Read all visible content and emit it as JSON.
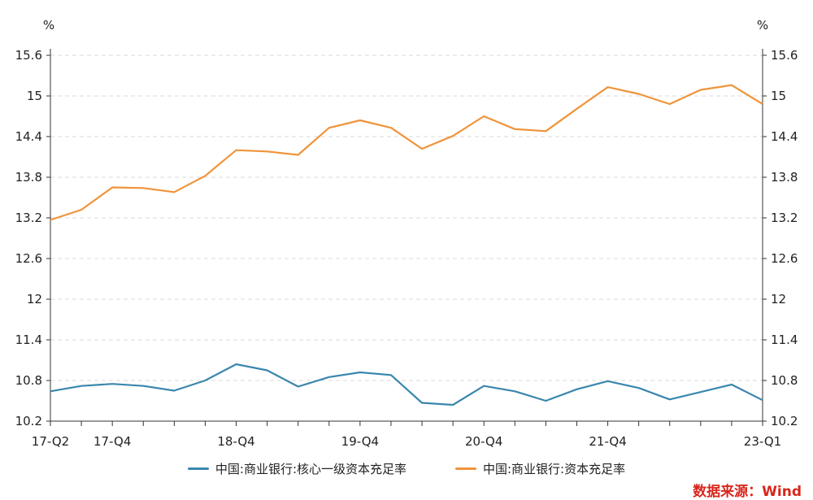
{
  "chart_data": {
    "type": "line",
    "title": "",
    "y_unit_left": "%",
    "y_unit_right": "%",
    "ylim": [
      10.2,
      15.6
    ],
    "yticks": [
      10.2,
      10.8,
      11.4,
      12,
      12.6,
      13.2,
      13.8,
      14.4,
      15,
      15.6
    ],
    "ytick_labels": [
      "10.2",
      "10.8",
      "11.4",
      "12",
      "12.6",
      "13.2",
      "13.8",
      "14.4",
      "15",
      "15.6"
    ],
    "grid": "horizontal-dashed",
    "legend_position": "bottom",
    "categories": [
      "17-Q2",
      "17-Q3",
      "17-Q4",
      "18-Q1",
      "18-Q2",
      "18-Q3",
      "18-Q4",
      "19-Q1",
      "19-Q2",
      "19-Q3",
      "19-Q4",
      "20-Q1",
      "20-Q2",
      "20-Q3",
      "20-Q4",
      "21-Q1",
      "21-Q2",
      "21-Q3",
      "21-Q4",
      "22-Q1",
      "22-Q2",
      "22-Q3",
      "22-Q4",
      "23-Q1"
    ],
    "xtick_labels": [
      {
        "index": 0,
        "label": "17-Q2"
      },
      {
        "index": 2,
        "label": "17-Q4"
      },
      {
        "index": 6,
        "label": "18-Q4"
      },
      {
        "index": 10,
        "label": "19-Q4"
      },
      {
        "index": 14,
        "label": "20-Q4"
      },
      {
        "index": 18,
        "label": "21-Q4"
      },
      {
        "index": 23,
        "label": "23-Q1"
      }
    ],
    "series": [
      {
        "name": "中国:商业银行:核心一级资本充足率",
        "color": "#3a87ad",
        "values": [
          10.64,
          10.72,
          10.75,
          10.72,
          10.65,
          10.8,
          11.04,
          10.95,
          10.71,
          10.85,
          10.92,
          10.88,
          10.47,
          10.44,
          10.72,
          10.64,
          10.5,
          10.67,
          10.79,
          10.69,
          10.52,
          10.63,
          10.74,
          10.51
        ]
      },
      {
        "name": "中国:商业银行:资本充足率",
        "color": "#f0943a",
        "values": [
          13.17,
          13.32,
          13.65,
          13.64,
          13.58,
          13.82,
          14.2,
          14.18,
          14.13,
          14.53,
          14.64,
          14.53,
          14.22,
          14.41,
          14.7,
          14.51,
          14.48,
          14.81,
          15.13,
          15.03,
          14.88,
          15.09,
          15.16,
          14.88
        ]
      }
    ]
  },
  "source": {
    "text": "数据来源：Wind",
    "color": "#d9261c"
  }
}
